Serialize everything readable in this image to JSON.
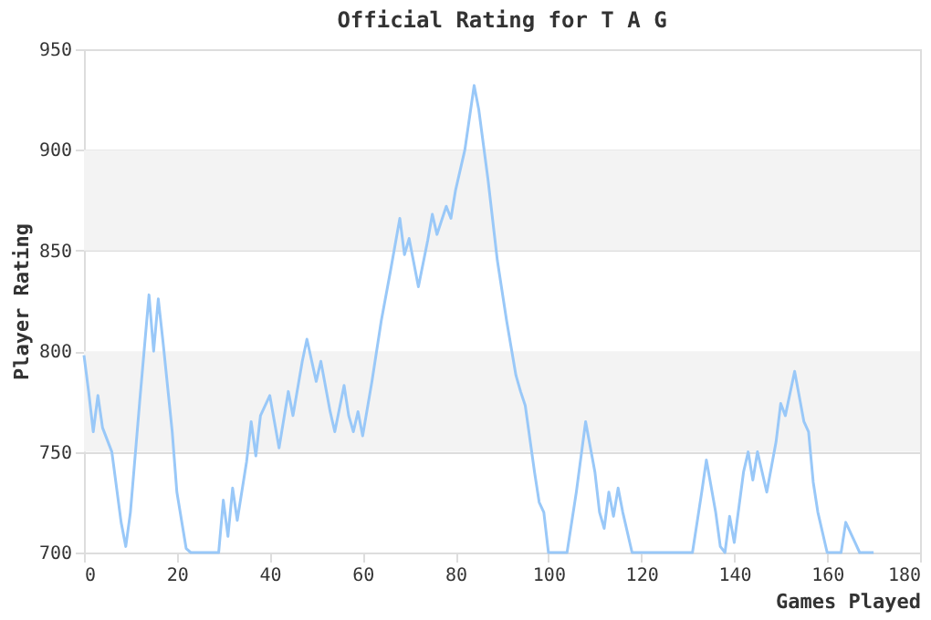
{
  "chart_data": {
    "type": "line",
    "title": "Official Rating for T A G",
    "xlabel": "Games Played",
    "ylabel": "Player Rating",
    "xlim": [
      0,
      180
    ],
    "xticks": [
      0,
      20,
      40,
      60,
      80,
      100,
      120,
      140,
      160,
      180
    ],
    "ylim": [
      700,
      950
    ],
    "yticks": [
      700,
      750,
      800,
      850,
      900,
      950
    ],
    "grid": "y",
    "marker": "none",
    "line_style": "solid",
    "bands": [
      {
        "axis": "y",
        "from": 750,
        "to": 800,
        "color": "#f3f3f3"
      },
      {
        "axis": "y",
        "from": 850,
        "to": 900,
        "color": "#f3f3f3"
      }
    ],
    "series": [
      {
        "color": "#99c8f8",
        "x": [
          0,
          1,
          2,
          3,
          4,
          6,
          8,
          9,
          10,
          12,
          14,
          15,
          16,
          17,
          19,
          20,
          22,
          23,
          29,
          30,
          31,
          32,
          33,
          35,
          36,
          37,
          38,
          40,
          42,
          44,
          45,
          47,
          48,
          50,
          51,
          53,
          54,
          56,
          57,
          58,
          59,
          60,
          62,
          64,
          66,
          68,
          69,
          70,
          72,
          74,
          75,
          76,
          78,
          79,
          80,
          82,
          84,
          85,
          87,
          89,
          91,
          93,
          94,
          95,
          97,
          98,
          99,
          100,
          104,
          106,
          108,
          110,
          111,
          112,
          113,
          114,
          115,
          116,
          118,
          131,
          133,
          134,
          136,
          137,
          138,
          139,
          140,
          142,
          143,
          144,
          145,
          147,
          149,
          150,
          151,
          153,
          155,
          156,
          157,
          158,
          160,
          163,
          164,
          166,
          167,
          170
        ],
        "values": [
          798,
          780,
          760,
          778,
          762,
          750,
          715,
          703,
          720,
          775,
          828,
          800,
          826,
          805,
          760,
          730,
          702,
          700,
          700,
          726,
          708,
          732,
          716,
          745,
          765,
          748,
          768,
          778,
          752,
          780,
          768,
          795,
          806,
          785,
          795,
          770,
          760,
          783,
          768,
          760,
          770,
          758,
          785,
          815,
          840,
          866,
          848,
          856,
          832,
          855,
          868,
          858,
          872,
          866,
          880,
          900,
          932,
          920,
          885,
          845,
          815,
          788,
          780,
          773,
          740,
          725,
          720,
          700,
          700,
          730,
          765,
          740,
          720,
          712,
          730,
          718,
          732,
          720,
          700,
          700,
          730,
          746,
          720,
          703,
          700,
          718,
          705,
          740,
          750,
          736,
          750,
          730,
          755,
          774,
          768,
          790,
          765,
          760,
          735,
          720,
          700,
          700,
          715,
          705,
          700,
          700
        ]
      }
    ]
  }
}
